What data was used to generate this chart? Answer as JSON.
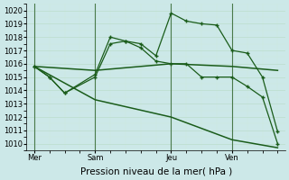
{
  "background_color": "#cce8e8",
  "grid_major_color": "#bbddcc",
  "grid_minor_color": "#cce8dd",
  "line_color": "#1a5c1a",
  "vline_color": "#4a7a4a",
  "xlabel": "Pression niveau de la mer( hPa )",
  "xlabel_fontsize": 7.5,
  "ylim": [
    1009.5,
    1020.5
  ],
  "yticks": [
    1010,
    1011,
    1012,
    1013,
    1014,
    1015,
    1016,
    1017,
    1018,
    1019,
    1020
  ],
  "ytick_fontsize": 6,
  "xtick_labels": [
    "Mer",
    "Sam",
    "Jeu",
    "Ven"
  ],
  "xtick_positions": [
    0,
    4,
    9,
    13
  ],
  "vline_positions": [
    0,
    4,
    9,
    13
  ],
  "xlim": [
    -0.5,
    16.5
  ],
  "series_with_markers": [
    {
      "x": [
        0,
        1,
        2,
        4,
        5,
        6,
        7,
        8,
        9,
        10,
        11,
        12,
        13,
        14,
        15,
        16
      ],
      "y": [
        1015.8,
        1015.0,
        1013.8,
        1015.2,
        1018.0,
        1017.7,
        1017.5,
        1016.6,
        1019.8,
        1019.2,
        1019.0,
        1018.9,
        1017.0,
        1016.8,
        1015.0,
        1010.9
      ]
    },
    {
      "x": [
        0,
        1,
        2,
        4,
        5,
        6,
        7,
        8,
        9,
        10,
        11,
        12,
        13,
        14,
        15,
        16
      ],
      "y": [
        1015.8,
        1015.0,
        1013.8,
        1015.0,
        1017.5,
        1017.7,
        1017.2,
        1016.2,
        1016.0,
        1016.0,
        1015.0,
        1015.0,
        1015.0,
        1014.3,
        1013.5,
        1010.0
      ]
    }
  ],
  "series_no_markers": [
    {
      "x": [
        0,
        4,
        9,
        13,
        16
      ],
      "y": [
        1015.8,
        1015.5,
        1016.0,
        1015.8,
        1015.5
      ]
    },
    {
      "x": [
        0,
        4,
        9,
        13,
        16
      ],
      "y": [
        1015.8,
        1013.3,
        1012.0,
        1010.3,
        1009.7
      ]
    }
  ]
}
